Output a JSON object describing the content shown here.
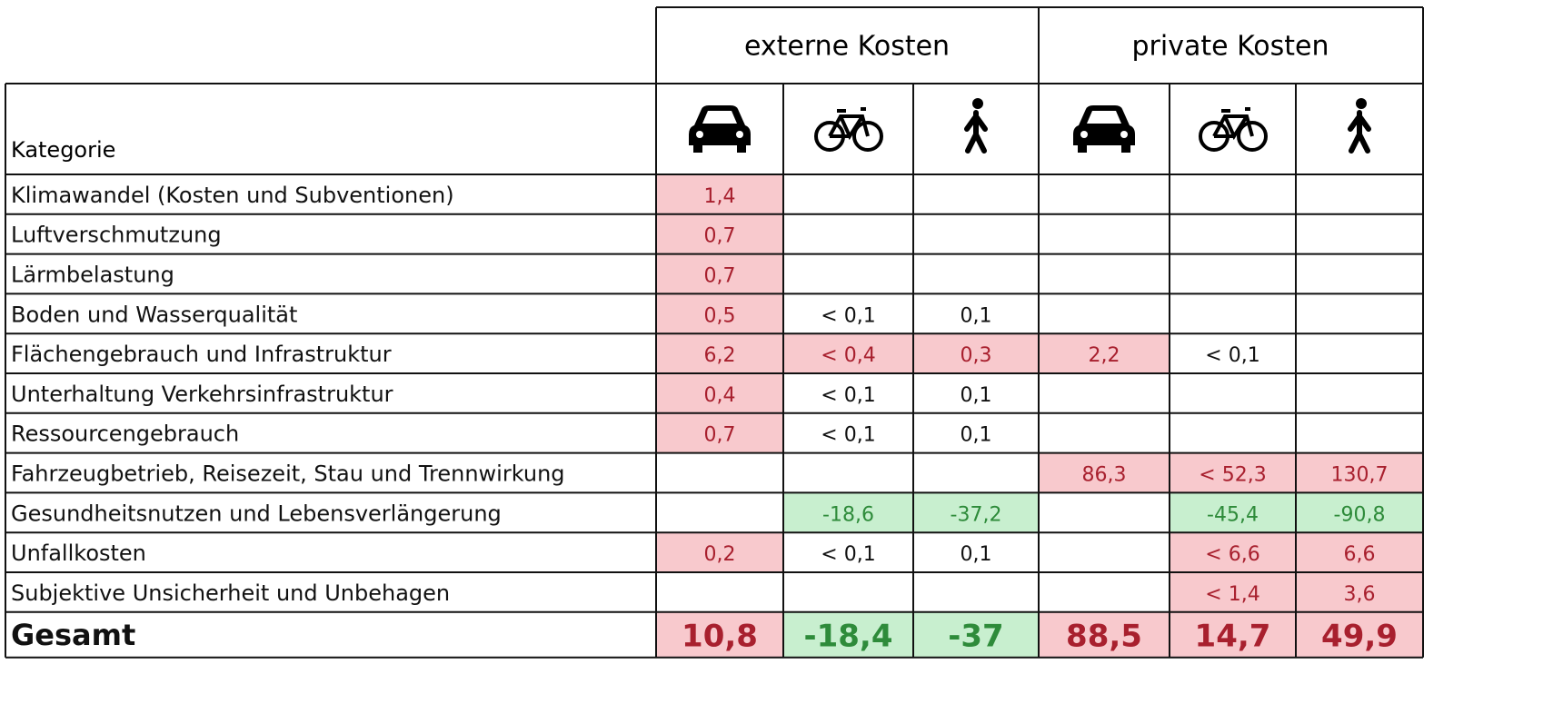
{
  "header": {
    "category": "Kategorie",
    "groups": [
      "externe Kosten",
      "private Kosten"
    ]
  },
  "table": {
    "rows": [
      {
        "label": "Klimawandel (Kosten und Subventionen)",
        "cells": [
          "1,4",
          null,
          null,
          null,
          null,
          null
        ],
        "tones": [
          "#f8c9cd",
          null,
          null,
          null,
          null,
          null
        ]
      },
      {
        "label": "Luftverschmutzung",
        "cells": [
          "0,7",
          null,
          null,
          null,
          null,
          null
        ],
        "tones": [
          "#f8c9cd",
          null,
          null,
          null,
          null,
          null
        ]
      },
      {
        "label": "Lärmbelastung",
        "cells": [
          "0,7",
          null,
          null,
          null,
          null,
          null
        ],
        "tones": [
          "#f8c9cd",
          null,
          null,
          null,
          null,
          null
        ]
      },
      {
        "label": "Boden und Wasserqualität",
        "cells": [
          "0,5",
          "< 0,1",
          "0,1",
          null,
          null,
          null
        ],
        "tones": [
          "#f8c9cd",
          null,
          null,
          null,
          null,
          null
        ]
      },
      {
        "label": "Flächengebrauch und Infrastruktur",
        "cells": [
          "6,2",
          "< 0,4",
          "0,3",
          "2,2",
          "< 0,1",
          null
        ],
        "tones": [
          "#f8c9cd",
          "#f8c9cd",
          "#f8c9cd",
          "#f8c9cd",
          null,
          null
        ]
      },
      {
        "label": "Unterhaltung Verkehrsinfrastruktur",
        "cells": [
          "0,4",
          "< 0,1",
          "0,1",
          null,
          null,
          null
        ],
        "tones": [
          "#f8c9cd",
          null,
          null,
          null,
          null,
          null
        ]
      },
      {
        "label": "Ressourcengebrauch",
        "cells": [
          "0,7",
          "< 0,1",
          "0,1",
          null,
          null,
          null
        ],
        "tones": [
          "#f8c9cd",
          null,
          null,
          null,
          null,
          null
        ]
      },
      {
        "label": "Fahrzeugbetrieb, Reisezeit, Stau und Trennwirkung",
        "cells": [
          null,
          null,
          null,
          "86,3",
          "< 52,3",
          "130,7"
        ],
        "tones": [
          null,
          null,
          null,
          "#f8c9cd",
          "#f8c9cd",
          "#f8c9cd"
        ]
      },
      {
        "label": "Gesundheitsnutzen und Lebensverlängerung",
        "cells": [
          null,
          "-18,6",
          "-37,2",
          null,
          "-45,4",
          "-90,8"
        ],
        "tones": [
          null,
          "#c8efcf",
          "#c8efcf",
          null,
          "#c8efcf",
          "#c8efcf"
        ]
      },
      {
        "label": "Unfallkosten",
        "cells": [
          "0,2",
          "< 0,1",
          "0,1",
          null,
          "< 6,6",
          "6,6"
        ],
        "tones": [
          "#f8c9cd",
          null,
          null,
          null,
          "#f8c9cd",
          "#f8c9cd"
        ]
      },
      {
        "label": "Subjektive Unsicherheit und Unbehagen",
        "cells": [
          null,
          null,
          null,
          null,
          "< 1,4",
          "3,6"
        ],
        "tones": [
          null,
          null,
          null,
          null,
          "#f8c9cd",
          "#f8c9cd"
        ]
      }
    ],
    "total": {
      "label": "Gesamt",
      "cells": [
        "10,8",
        "-18,4",
        "-37",
        "88,5",
        "14,7",
        "49,9"
      ],
      "tones": [
        "#f8c9cd",
        "#c8efcf",
        "#c8efcf",
        "#f8c9cd",
        "#f8c9cd",
        "#f8c9cd"
      ]
    }
  }
}
